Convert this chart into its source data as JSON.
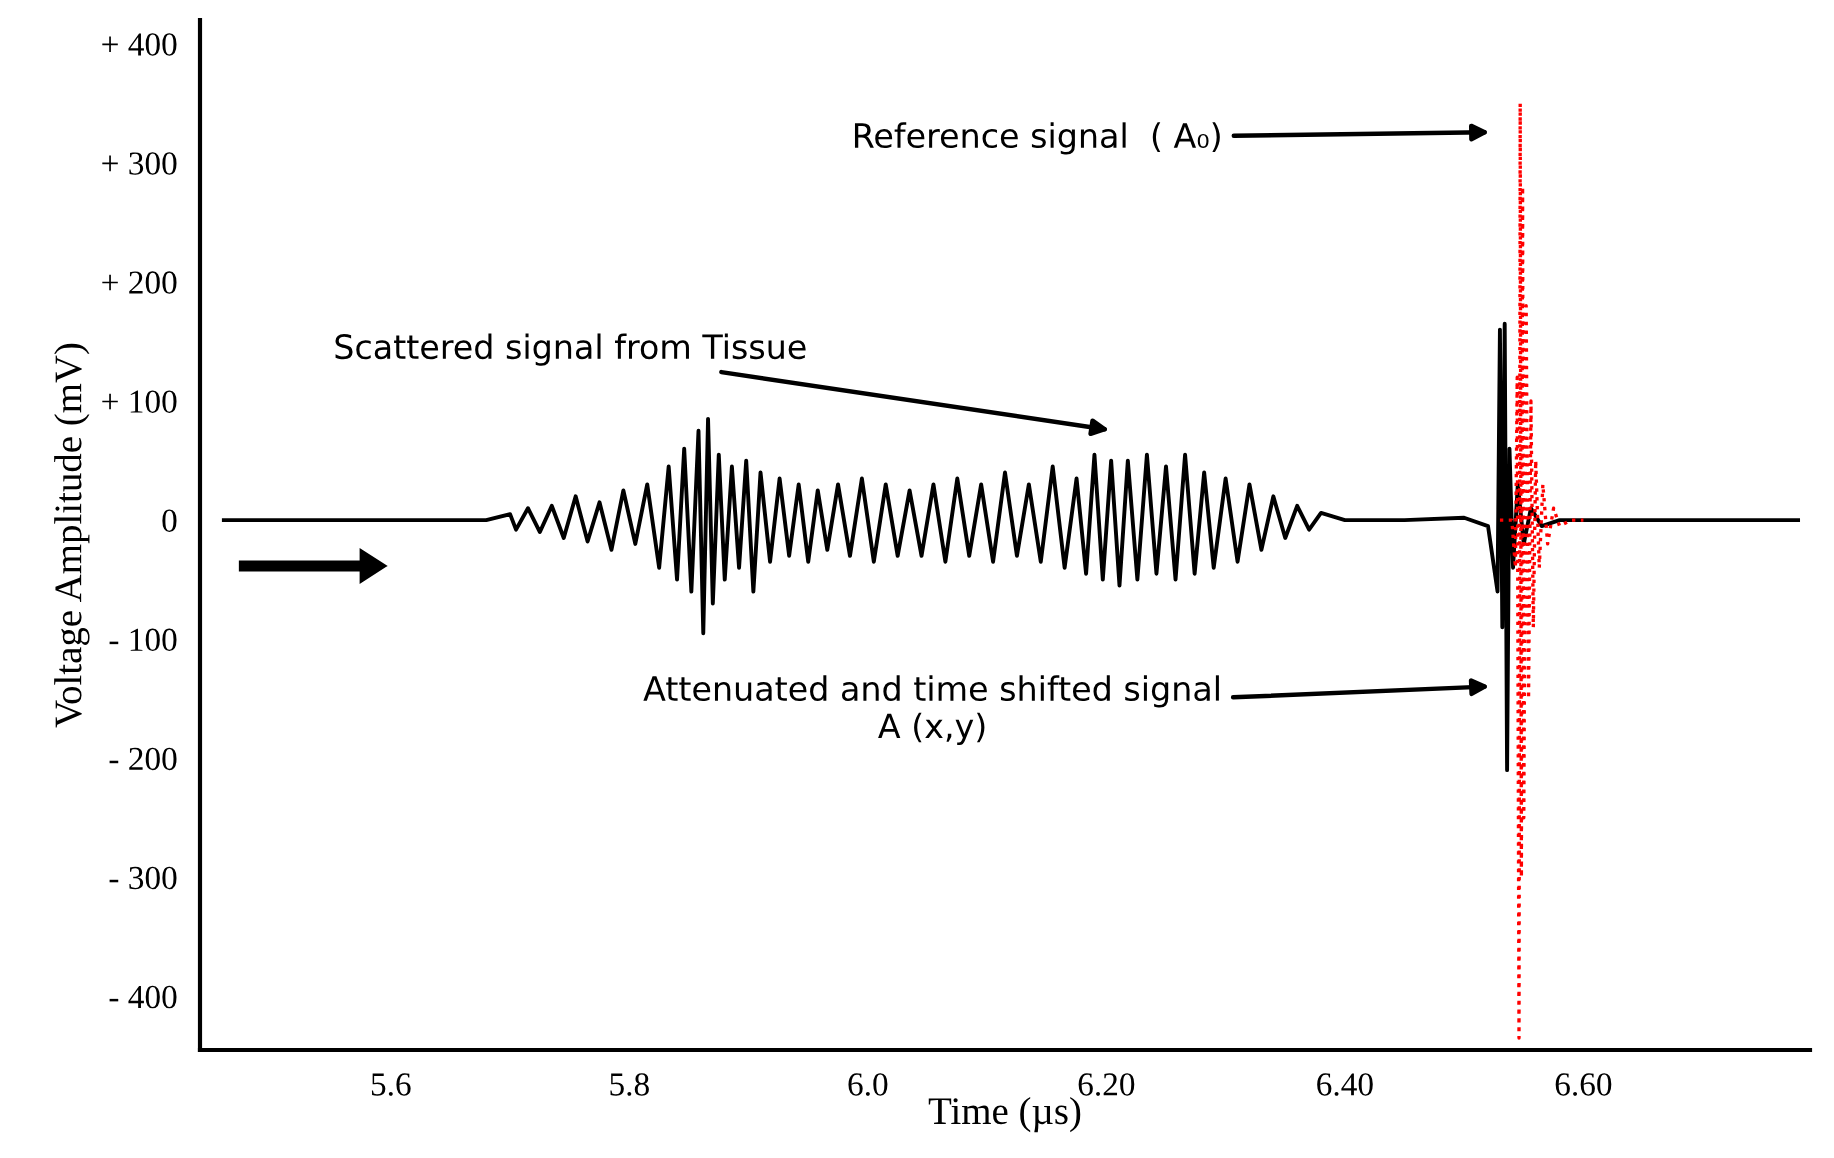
{
  "chart_data": {
    "type": "line",
    "xlabel": "Time (µs)",
    "ylabel": "Voltage Amplitude (mV)",
    "xlim": [
      5.44,
      6.79
    ],
    "ylim": [
      -445,
      420
    ],
    "xticks": [
      5.6,
      5.8,
      {
        "value": 6.0,
        "label": "6.0"
      },
      {
        "value": 6.2,
        "label": "6.20"
      },
      {
        "value": 6.4,
        "label": "6.40"
      },
      {
        "value": 6.6,
        "label": "6.60"
      }
    ],
    "yticks": [
      {
        "value": 400,
        "label": "+ 400"
      },
      {
        "value": 300,
        "label": "+ 300"
      },
      {
        "value": 200,
        "label": "+ 200"
      },
      {
        "value": 100,
        "label": "+ 100"
      },
      0,
      {
        "value": -100,
        "label": "- 100"
      },
      {
        "value": -200,
        "label": "- 200"
      },
      {
        "value": -300,
        "label": "- 300"
      },
      {
        "value": -400,
        "label": "- 400"
      }
    ],
    "grid": false,
    "legend": false,
    "marker": "none",
    "series": [
      {
        "color": "#000000",
        "line_style": "solid",
        "x": [
          5.46,
          5.6,
          5.68,
          5.7,
          5.705,
          5.715,
          5.725,
          5.735,
          5.745,
          5.755,
          5.765,
          5.775,
          5.785,
          5.795,
          5.805,
          5.815,
          5.825,
          5.833,
          5.84,
          5.846,
          5.852,
          5.858,
          5.862,
          5.866,
          5.87,
          5.875,
          5.88,
          5.886,
          5.892,
          5.898,
          5.904,
          5.91,
          5.918,
          5.926,
          5.934,
          5.942,
          5.95,
          5.958,
          5.966,
          5.975,
          5.985,
          5.995,
          6.005,
          6.015,
          6.025,
          6.035,
          6.045,
          6.055,
          6.065,
          6.075,
          6.085,
          6.095,
          6.105,
          6.115,
          6.125,
          6.135,
          6.145,
          6.155,
          6.165,
          6.175,
          6.183,
          6.19,
          6.197,
          6.204,
          6.211,
          6.218,
          6.226,
          6.234,
          6.242,
          6.25,
          6.258,
          6.266,
          6.274,
          6.282,
          6.29,
          6.3,
          6.31,
          6.32,
          6.33,
          6.34,
          6.35,
          6.36,
          6.37,
          6.38,
          6.4,
          6.45,
          6.5,
          6.52,
          6.528,
          6.53,
          6.532,
          6.534,
          6.536,
          6.538,
          6.541,
          6.545,
          6.55,
          6.556,
          6.565,
          6.58,
          6.78
        ],
        "values": [
          0,
          0,
          0,
          5,
          -8,
          10,
          -10,
          12,
          -15,
          20,
          -18,
          15,
          -25,
          25,
          -20,
          30,
          -40,
          45,
          -50,
          60,
          -60,
          75,
          -95,
          85,
          -70,
          55,
          -50,
          45,
          -40,
          50,
          -60,
          40,
          -35,
          35,
          -30,
          30,
          -35,
          25,
          -25,
          30,
          -30,
          35,
          -35,
          30,
          -30,
          25,
          -30,
          30,
          -35,
          35,
          -30,
          30,
          -35,
          40,
          -30,
          30,
          -35,
          45,
          -40,
          35,
          -45,
          55,
          -50,
          50,
          -55,
          50,
          -50,
          55,
          -45,
          45,
          -50,
          55,
          -45,
          40,
          -40,
          35,
          -35,
          30,
          -25,
          20,
          -15,
          12,
          -8,
          6,
          0,
          0,
          2,
          -5,
          -60,
          160,
          -90,
          165,
          -210,
          60,
          -40,
          30,
          -20,
          10,
          -5,
          0,
          0
        ]
      },
      {
        "color": "#ff0000",
        "line_style": "dotted",
        "x": [
          6.53,
          6.54,
          6.543,
          6.5445,
          6.546,
          6.547,
          6.548,
          6.549,
          6.55,
          6.552,
          6.554,
          6.556,
          6.558,
          6.56,
          6.563,
          6.566,
          6.57,
          6.575,
          6.58,
          6.59,
          6.6
        ],
        "values": [
          0,
          0,
          -40,
          120,
          -435,
          350,
          -300,
          280,
          -250,
          180,
          -150,
          100,
          -90,
          50,
          -40,
          30,
          -20,
          10,
          -5,
          0,
          0
        ]
      }
    ],
    "annotations": [
      "Scattered signal from Tissue",
      "Reference signal  ( A₀)",
      "Attenuated and time shifted signal\nA (x,y)"
    ]
  }
}
